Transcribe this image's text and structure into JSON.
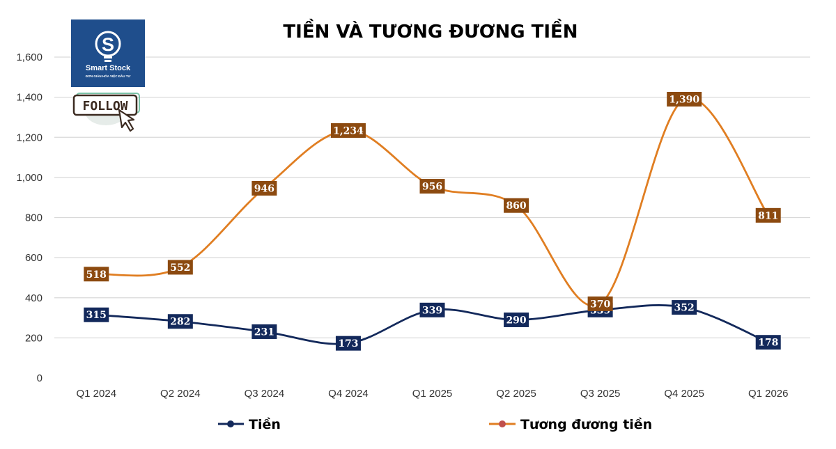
{
  "logo": {
    "brand": "Smart Stock",
    "tagline": "ĐƠN GIẢN HÓA VIỆC ĐẦU TƯ",
    "bg_color": "#1f4e8c",
    "follow_label": "FOLLOW"
  },
  "chart_data": {
    "type": "line",
    "title": "TIỀN VÀ TƯƠNG ĐƯƠNG TIỀN",
    "categories": [
      "Q1 2024",
      "Q2 2024",
      "Q3 2024",
      "Q4 2024",
      "Q1 2025",
      "Q2 2025",
      "Q3 2025",
      "Q4 2025",
      "Q1 2026"
    ],
    "ylim": [
      0,
      1600
    ],
    "yticks": [
      0,
      200,
      400,
      600,
      800,
      1000,
      1200,
      1400,
      1600
    ],
    "grid": true,
    "smooth": true,
    "legend_position": "bottom",
    "series": [
      {
        "name": "Tiền",
        "values": [
          315,
          282,
          231,
          173,
          339,
          290,
          339,
          352,
          178
        ],
        "color": "#13295b",
        "label_bg": "#13295b",
        "marker_color": "#13295b"
      },
      {
        "name": "Tương đương tiền",
        "values": [
          518,
          552,
          946,
          1234,
          956,
          860,
          370,
          1390,
          811
        ],
        "color": "#e07e22",
        "label_bg": "#8c4a10",
        "marker_color": "#c0504d"
      }
    ]
  }
}
